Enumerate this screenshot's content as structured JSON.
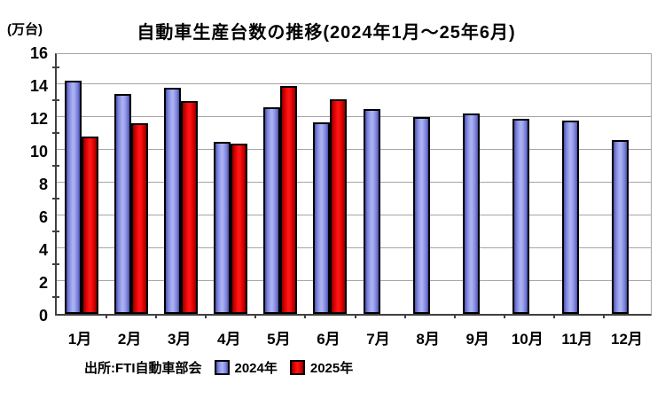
{
  "title": "自動車生産台数の推移(2024年1月～25年6月)",
  "unit_label": "(万台)",
  "source": "出所:FTI自動車部会",
  "colors": {
    "series_2024": "#9aa0ea",
    "series_2025": "#ff0000",
    "bar_border": "#000000",
    "gridline": "#a6a6a6",
    "axis": "#404040",
    "background": "#ffffff",
    "text": "#000000"
  },
  "chart_data": {
    "type": "bar",
    "title": "自動車生産台数の推移(2024年1月～25年6月)",
    "categories": [
      "1月",
      "2月",
      "3月",
      "4月",
      "5月",
      "6月",
      "7月",
      "8月",
      "9月",
      "10月",
      "11月",
      "12月"
    ],
    "series": [
      {
        "name": "2024年",
        "values": [
          14.2,
          13.4,
          13.8,
          10.5,
          12.6,
          11.7,
          12.5,
          12.0,
          12.2,
          11.9,
          11.8,
          10.6
        ]
      },
      {
        "name": "2025年",
        "values": [
          10.8,
          11.6,
          13.0,
          10.4,
          13.9,
          13.1,
          null,
          null,
          null,
          null,
          null,
          null
        ]
      }
    ],
    "xlabel": "",
    "ylabel": "(万台)",
    "ylim": [
      0,
      16
    ],
    "y_ticks": [
      0,
      2,
      4,
      6,
      8,
      10,
      12,
      14,
      16
    ],
    "grid": true,
    "legend_position": "bottom",
    "source_note": "出所:FTI自動車部会"
  }
}
